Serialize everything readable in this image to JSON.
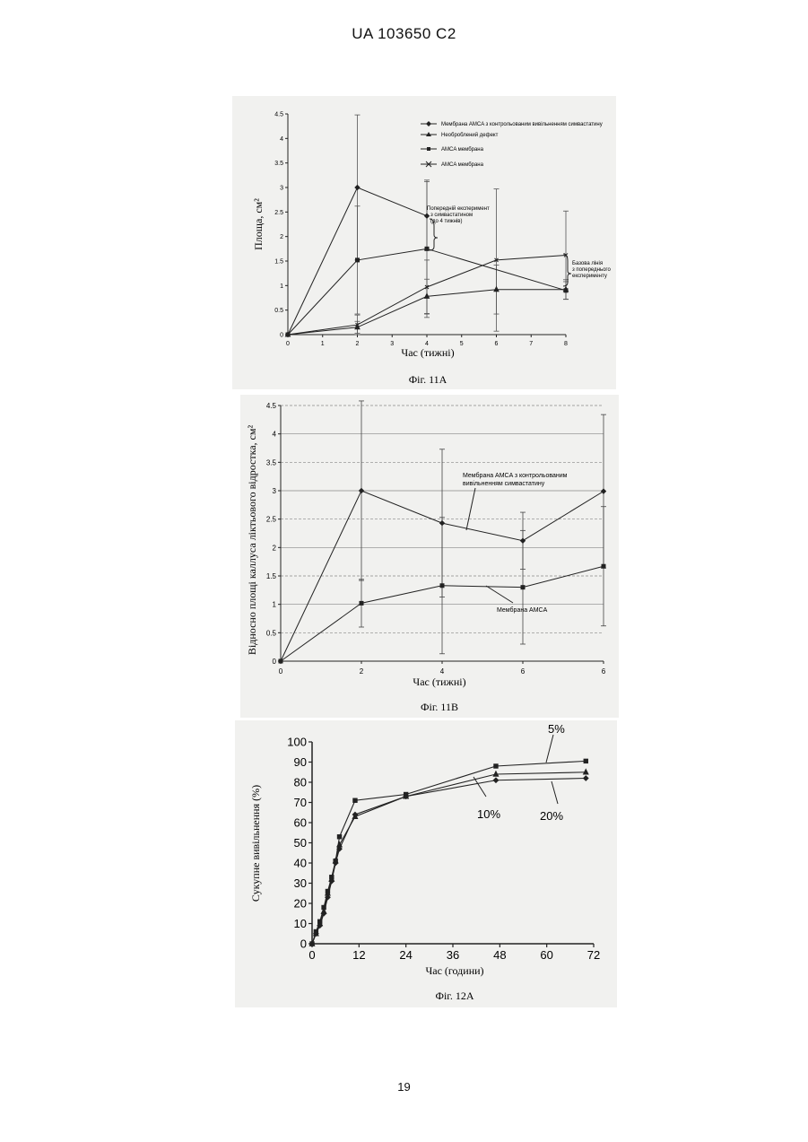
{
  "page": {
    "header": "UA   103650   C2",
    "number": "19"
  },
  "fig11a": {
    "caption": "Фіг. 11А",
    "xlabel": "Час (тижні)",
    "ylabel": "Площа, см²",
    "xticks": [
      "0",
      "1",
      "2",
      "3",
      "4",
      "5",
      "6",
      "7",
      "8"
    ],
    "yticks": [
      "0",
      "0.5",
      "1",
      "1.5",
      "2",
      "2.5",
      "3",
      "3.5",
      "4",
      "4.5"
    ],
    "legend": [
      "Мембрана AMCA з контрольованим вивільненням симвастатину",
      "Необроблений дефект",
      "AMCA мембрана",
      "AMCA мембрана"
    ],
    "annotation1": [
      "Попередній експеримент",
      "з симвастатином",
      "(до 4 тижнів)"
    ],
    "annotation2": [
      "Базова лінія",
      "з попереднього",
      "експерименту"
    ]
  },
  "fig11b": {
    "caption": "Фіг. 11В",
    "xlabel": "Час (тижні)",
    "ylabel": "Відносно площі каллуса ліктьового відростка, см²",
    "xticks": [
      "0",
      "2",
      "4",
      "6",
      "6"
    ],
    "yticks": [
      "0",
      "0.5",
      "1",
      "1.5",
      "2",
      "2.5",
      "3",
      "3.5",
      "4",
      "4.5"
    ],
    "label_top": [
      "Мембрана AMCA з контрольованим",
      "вивільненням симвастатину"
    ],
    "label_bottom": "Мембрана AMCA"
  },
  "fig12a": {
    "caption": "Фіг. 12А",
    "xlabel": "Час (години)",
    "ylabel": "Сукупне вивільнення (%)",
    "xticks": [
      "0",
      "12",
      "24",
      "36",
      "48",
      "60",
      "72"
    ],
    "yticks": [
      "0",
      "10",
      "20",
      "30",
      "40",
      "50",
      "60",
      "70",
      "80",
      "90",
      "100"
    ],
    "labels": {
      "s5": "5%",
      "s10": "10%",
      "s20": "20%"
    }
  },
  "chart_data": [
    {
      "type": "line",
      "title": "",
      "xlabel": "Час (тижні)",
      "ylabel": "Площа, см²",
      "xlim": [
        0,
        8
      ],
      "ylim": [
        0,
        4.5
      ],
      "series": [
        {
          "name": "Мембрана AMCA з контрольованим вивільненням симвастатину",
          "marker": "diamond",
          "x": [
            0,
            2,
            4
          ],
          "y": [
            0,
            3.0,
            2.42
          ],
          "err": [
            0,
            1.48,
            0.7
          ]
        },
        {
          "name": "Необроблений дефект",
          "marker": "triangle",
          "x": [
            0,
            2,
            4,
            6,
            8
          ],
          "y": [
            0,
            0.15,
            0.78,
            0.92,
            0.92
          ],
          "err": [
            0,
            0.12,
            0.35,
            0.5,
            0.2
          ]
        },
        {
          "name": "AMCA мембрана",
          "marker": "square",
          "x": [
            0,
            2,
            4,
            8
          ],
          "y": [
            0,
            1.52,
            1.75,
            0.9
          ],
          "err": [
            0,
            1.1,
            1.4,
            0.18
          ]
        },
        {
          "name": "AMCA мембрана",
          "marker": "x",
          "x": [
            0,
            2,
            4,
            6,
            8
          ],
          "y": [
            0,
            0.2,
            0.97,
            1.52,
            1.62
          ],
          "err": [
            0,
            0.2,
            0.55,
            1.45,
            0.9
          ]
        }
      ]
    },
    {
      "type": "line",
      "title": "",
      "xlabel": "Час (тижні)",
      "ylabel": "Відносно площі каллуса ліктьового відростка, см²",
      "categories": [
        "0",
        "2",
        "4",
        "6",
        "6"
      ],
      "ylim": [
        0,
        4.5
      ],
      "series": [
        {
          "name": "Мембрана AMCA з контрольованим вивільненням симвастатину",
          "marker": "diamond",
          "y": [
            0,
            3.0,
            2.43,
            2.12,
            2.99
          ],
          "err": [
            0,
            1.58,
            1.3,
            0.5,
            1.35
          ]
        },
        {
          "name": "Мембрана AMCA",
          "marker": "square",
          "y": [
            0,
            1.02,
            1.33,
            1.3,
            1.67
          ],
          "err": [
            0,
            0.42,
            1.2,
            1.0,
            1.05
          ]
        }
      ]
    },
    {
      "type": "line",
      "title": "",
      "xlabel": "Час (години)",
      "ylabel": "Сукупне вивільнення (%)",
      "xlim": [
        0,
        72
      ],
      "ylim": [
        0,
        100
      ],
      "series": [
        {
          "name": "5%",
          "marker": "square",
          "x": [
            0,
            1,
            2,
            3,
            4,
            5,
            6,
            7,
            11,
            24,
            47,
            70
          ],
          "y": [
            0,
            6,
            11,
            18,
            26,
            33,
            41,
            53,
            71,
            74,
            88,
            90.5
          ]
        },
        {
          "name": "10%",
          "marker": "triangle",
          "x": [
            0,
            1,
            2,
            3,
            4,
            5,
            6,
            7,
            11,
            24,
            47,
            70
          ],
          "y": [
            0,
            5,
            10,
            16,
            25,
            32,
            41,
            49,
            63,
            73,
            84,
            85
          ]
        },
        {
          "name": "20%",
          "marker": "diamond",
          "x": [
            0,
            1,
            2,
            3,
            4,
            5,
            6,
            7,
            11,
            24,
            47,
            70
          ],
          "y": [
            0,
            5,
            9,
            15,
            23,
            31,
            40,
            47,
            64,
            73,
            81,
            82
          ]
        }
      ]
    }
  ]
}
